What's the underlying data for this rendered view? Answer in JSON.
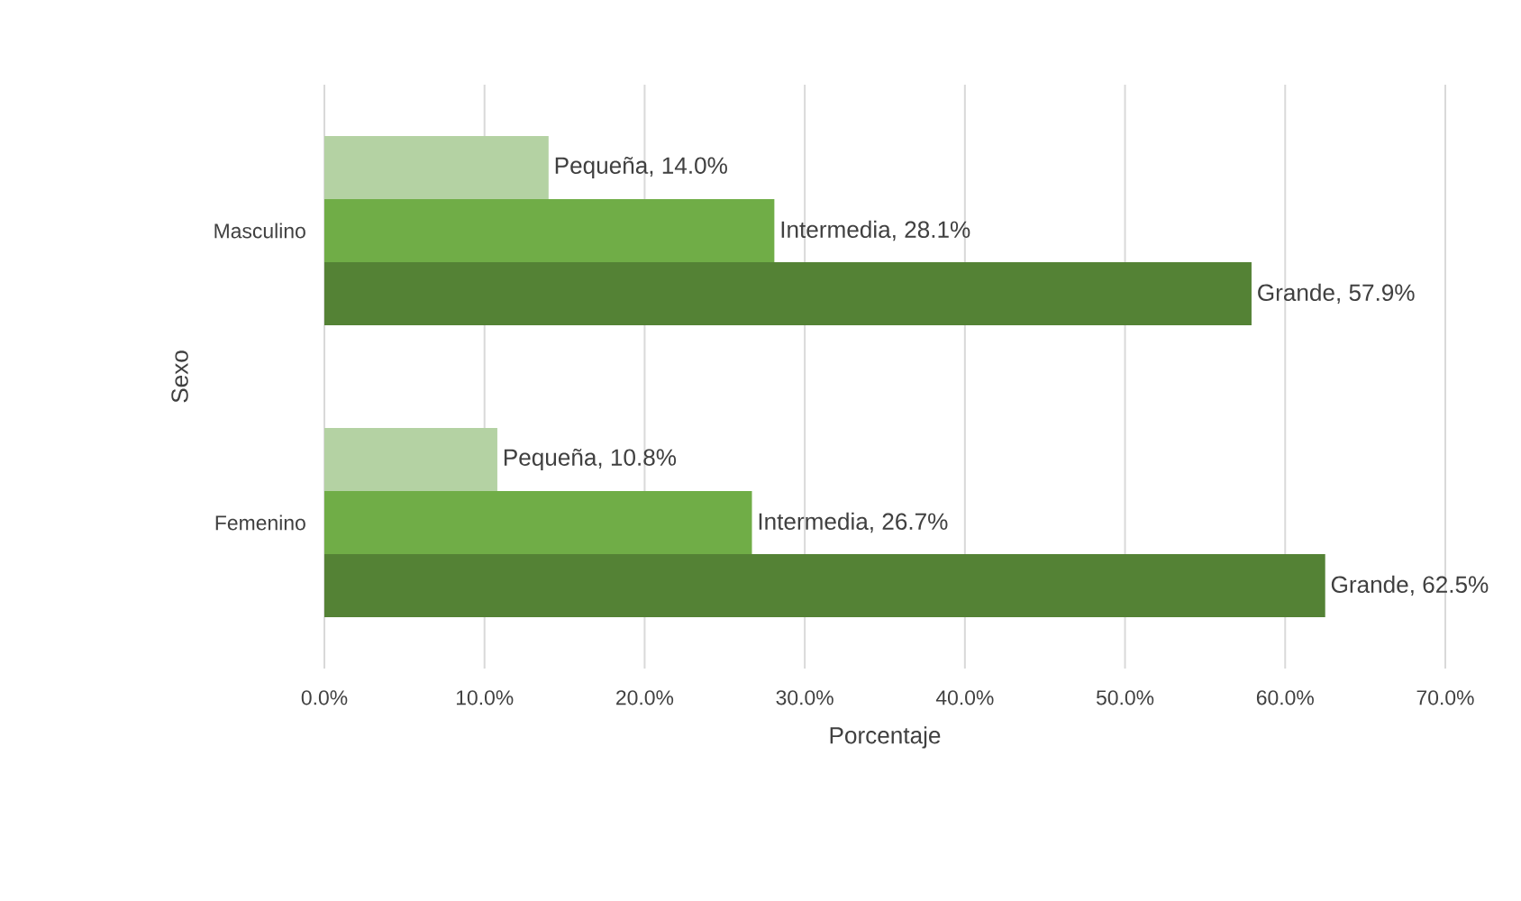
{
  "chart_data": {
    "type": "bar",
    "orientation": "horizontal",
    "xlabel": "Porcentaje",
    "ylabel": "Sexo",
    "categories": [
      "Masculino",
      "Femenino"
    ],
    "series": [
      {
        "color": "#b4d2a3",
        "values": [
          14.0,
          10.8
        ],
        "value_labels": [
          "Pequeña, 14.0%",
          "Pequeña, 10.8%"
        ]
      },
      {
        "color": "#70ad47",
        "values": [
          28.1,
          26.7
        ],
        "value_labels": [
          "Intermedia, 28.1%",
          "Intermedia, 26.7%"
        ]
      },
      {
        "color": "#548235",
        "values": [
          57.9,
          62.5
        ],
        "value_labels": [
          "Grande, 57.9%",
          "Grande, 62.5%"
        ]
      }
    ],
    "xlim": [
      0,
      70
    ],
    "xticks": [
      {
        "value": 0,
        "label": "0.0%"
      },
      {
        "value": 10,
        "label": "10.0%"
      },
      {
        "value": 20,
        "label": "20.0%"
      },
      {
        "value": 30,
        "label": "30.0%"
      },
      {
        "value": 40,
        "label": "40.0%"
      },
      {
        "value": 50,
        "label": "50.0%"
      },
      {
        "value": 60,
        "label": "60.0%"
      },
      {
        "value": 70,
        "label": "70.0%"
      }
    ],
    "grid": "x"
  }
}
